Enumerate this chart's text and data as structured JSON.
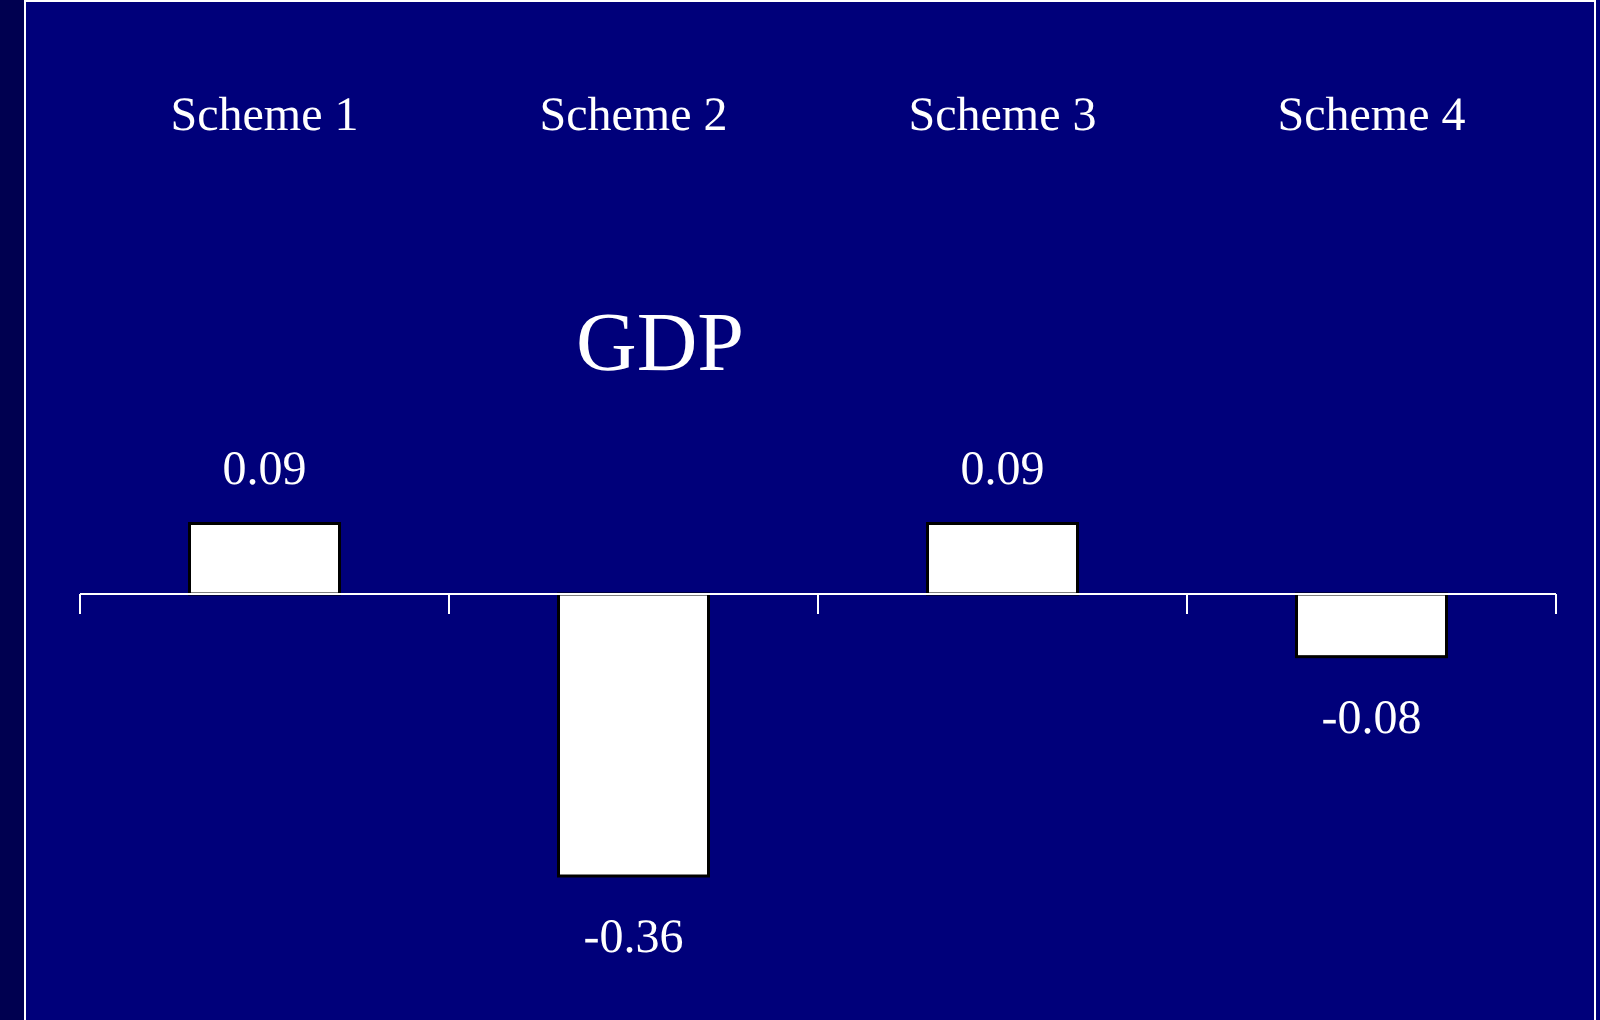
{
  "chart_data": {
    "type": "bar",
    "title": "GDP",
    "categories": [
      "Scheme 1",
      "Scheme 2",
      "Scheme 3",
      "Scheme 4"
    ],
    "values": [
      0.09,
      -0.36,
      0.09,
      -0.08
    ],
    "color": "#ffffff",
    "data_labels": true
  }
}
